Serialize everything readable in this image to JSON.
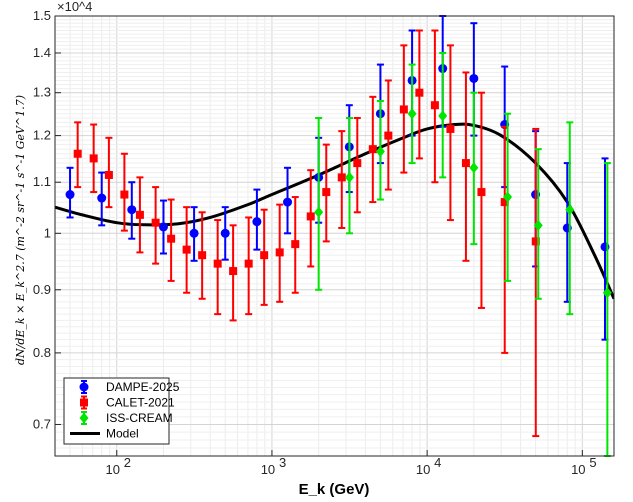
{
  "chart_data": {
    "type": "scatter",
    "xscale": "log",
    "yscale": "log",
    "xlim": [
      40,
      160000
    ],
    "ylim": [
      0.66,
      1.5
    ],
    "ylim_unit_multiplier": "×10^4",
    "xlabel": "E_k (GeV)",
    "ylabel": "dN/dE_k × E_k^2.7 (m^-2 sr^-1 s^-1 GeV^1.7)",
    "y_exponent_label": "×10^4",
    "x_ticks": [
      {
        "value": 100,
        "base": "10",
        "exp": "2"
      },
      {
        "value": 1000,
        "base": "10",
        "exp": "3"
      },
      {
        "value": 10000,
        "base": "10",
        "exp": "4"
      },
      {
        "value": 100000,
        "base": "10",
        "exp": "5"
      }
    ],
    "y_ticks": [
      {
        "value": 0.7,
        "label": "0.7"
      },
      {
        "value": 0.8,
        "label": "0.8"
      },
      {
        "value": 0.9,
        "label": "0.9"
      },
      {
        "value": 1.0,
        "label": "1"
      },
      {
        "value": 1.1,
        "label": "1.1"
      },
      {
        "value": 1.2,
        "label": "1.2"
      },
      {
        "value": 1.3,
        "label": "1.3"
      },
      {
        "value": 1.4,
        "label": "1.4"
      },
      {
        "value": 1.5,
        "label": "1.5"
      }
    ],
    "grid": true,
    "legend_position": "bottom-left",
    "series": [
      {
        "name": "DAMPE-2025",
        "color": "#0000ff",
        "marker": "circle",
        "points": [
          {
            "x": 50,
            "y": 1.075,
            "lo": 1.03,
            "hi": 1.13
          },
          {
            "x": 80,
            "y": 1.068,
            "lo": 1.015,
            "hi": 1.12
          },
          {
            "x": 125,
            "y": 1.045,
            "lo": 0.99,
            "hi": 1.1
          },
          {
            "x": 200,
            "y": 1.012,
            "lo": 0.963,
            "hi": 1.063
          },
          {
            "x": 315,
            "y": 1.0,
            "lo": 0.95,
            "hi": 1.05
          },
          {
            "x": 500,
            "y": 1.0,
            "lo": 0.952,
            "hi": 1.05
          },
          {
            "x": 800,
            "y": 1.022,
            "lo": 0.97,
            "hi": 1.085
          },
          {
            "x": 1260,
            "y": 1.06,
            "lo": 1.0,
            "hi": 1.13
          },
          {
            "x": 2000,
            "y": 1.11,
            "lo": 1.02,
            "hi": 1.195
          },
          {
            "x": 3150,
            "y": 1.175,
            "lo": 1.08,
            "hi": 1.27
          },
          {
            "x": 5000,
            "y": 1.25,
            "lo": 1.14,
            "hi": 1.37
          },
          {
            "x": 8000,
            "y": 1.33,
            "lo": 1.2,
            "hi": 1.46
          },
          {
            "x": 12600,
            "y": 1.36,
            "lo": 1.22,
            "hi": 1.5
          },
          {
            "x": 20000,
            "y": 1.335,
            "lo": 1.2,
            "hi": 1.48
          },
          {
            "x": 31600,
            "y": 1.225,
            "lo": 1.09,
            "hi": 1.365
          },
          {
            "x": 50000,
            "y": 1.075,
            "lo": 0.94,
            "hi": 1.21
          },
          {
            "x": 80000,
            "y": 1.01,
            "lo": 0.88,
            "hi": 1.14
          },
          {
            "x": 140000,
            "y": 0.975,
            "lo": 0.82,
            "hi": 1.15
          }
        ]
      },
      {
        "name": "CALET-2021",
        "color": "#ff0000",
        "marker": "square",
        "points": [
          {
            "x": 56,
            "y": 1.16,
            "lo": 1.09,
            "hi": 1.23
          },
          {
            "x": 71,
            "y": 1.15,
            "lo": 1.08,
            "hi": 1.225
          },
          {
            "x": 89,
            "y": 1.115,
            "lo": 1.05,
            "hi": 1.195
          },
          {
            "x": 112,
            "y": 1.075,
            "lo": 1.005,
            "hi": 1.16
          },
          {
            "x": 141,
            "y": 1.035,
            "lo": 0.965,
            "hi": 1.11
          },
          {
            "x": 178,
            "y": 1.02,
            "lo": 0.945,
            "hi": 1.09
          },
          {
            "x": 224,
            "y": 0.99,
            "lo": 0.915,
            "hi": 1.065
          },
          {
            "x": 282,
            "y": 0.97,
            "lo": 0.895,
            "hi": 1.05
          },
          {
            "x": 355,
            "y": 0.96,
            "lo": 0.885,
            "hi": 1.04
          },
          {
            "x": 447,
            "y": 0.945,
            "lo": 0.86,
            "hi": 1.025
          },
          {
            "x": 562,
            "y": 0.932,
            "lo": 0.85,
            "hi": 1.015
          },
          {
            "x": 708,
            "y": 0.945,
            "lo": 0.86,
            "hi": 1.03
          },
          {
            "x": 891,
            "y": 0.96,
            "lo": 0.875,
            "hi": 1.045
          },
          {
            "x": 1122,
            "y": 0.965,
            "lo": 0.88,
            "hi": 1.055
          },
          {
            "x": 1413,
            "y": 0.98,
            "lo": 0.895,
            "hi": 1.07
          },
          {
            "x": 1778,
            "y": 1.032,
            "lo": 0.94,
            "hi": 1.125
          },
          {
            "x": 2239,
            "y": 1.08,
            "lo": 0.985,
            "hi": 1.18
          },
          {
            "x": 2818,
            "y": 1.11,
            "lo": 1.01,
            "hi": 1.21
          },
          {
            "x": 3548,
            "y": 1.14,
            "lo": 1.04,
            "hi": 1.24
          },
          {
            "x": 4467,
            "y": 1.17,
            "lo": 1.06,
            "hi": 1.29
          },
          {
            "x": 5623,
            "y": 1.2,
            "lo": 1.085,
            "hi": 1.33
          },
          {
            "x": 7079,
            "y": 1.26,
            "lo": 1.12,
            "hi": 1.42
          },
          {
            "x": 8913,
            "y": 1.3,
            "lo": 1.15,
            "hi": 1.46
          },
          {
            "x": 11220,
            "y": 1.27,
            "lo": 1.1,
            "hi": 1.46
          },
          {
            "x": 14125,
            "y": 1.215,
            "lo": 1.025,
            "hi": 1.42
          },
          {
            "x": 17783,
            "y": 1.14,
            "lo": 0.95,
            "hi": 1.35
          },
          {
            "x": 22387,
            "y": 1.08,
            "lo": 0.87,
            "hi": 1.3
          },
          {
            "x": 31623,
            "y": 1.06,
            "lo": 0.8,
            "hi": 1.22
          },
          {
            "x": 50119,
            "y": 0.985,
            "lo": 0.685,
            "hi": 1.215
          }
        ]
      },
      {
        "name": "ISS-CREAM",
        "color": "#00e600",
        "marker": "diamond",
        "points": [
          {
            "x": 2000,
            "y": 1.04,
            "lo": 0.9,
            "hi": 1.24
          },
          {
            "x": 3160,
            "y": 1.11,
            "lo": 1.0,
            "hi": 1.24
          },
          {
            "x": 5000,
            "y": 1.165,
            "lo": 1.065,
            "hi": 1.28
          },
          {
            "x": 8000,
            "y": 1.25,
            "lo": 1.14,
            "hi": 1.37
          },
          {
            "x": 12600,
            "y": 1.245,
            "lo": 1.11,
            "hi": 1.4
          },
          {
            "x": 20000,
            "y": 1.13,
            "lo": 0.98,
            "hi": 1.3
          },
          {
            "x": 33000,
            "y": 1.07,
            "lo": 0.915,
            "hi": 1.25
          },
          {
            "x": 52000,
            "y": 1.015,
            "lo": 0.885,
            "hi": 1.17
          },
          {
            "x": 83000,
            "y": 1.045,
            "lo": 0.86,
            "hi": 1.23
          },
          {
            "x": 145000,
            "y": 0.895,
            "lo": 0.65,
            "hi": 1.14
          }
        ]
      },
      {
        "name": "Model",
        "color": "#000000",
        "marker": "line",
        "points": [
          {
            "x": 40,
            "y": 1.05
          },
          {
            "x": 60,
            "y": 1.035
          },
          {
            "x": 100,
            "y": 1.02
          },
          {
            "x": 150,
            "y": 1.016
          },
          {
            "x": 250,
            "y": 1.018
          },
          {
            "x": 400,
            "y": 1.03
          },
          {
            "x": 700,
            "y": 1.055
          },
          {
            "x": 1000,
            "y": 1.075
          },
          {
            "x": 2000,
            "y": 1.115
          },
          {
            "x": 4000,
            "y": 1.16
          },
          {
            "x": 7000,
            "y": 1.195
          },
          {
            "x": 10000,
            "y": 1.215
          },
          {
            "x": 15000,
            "y": 1.225
          },
          {
            "x": 20000,
            "y": 1.223
          },
          {
            "x": 30000,
            "y": 1.2
          },
          {
            "x": 50000,
            "y": 1.14
          },
          {
            "x": 80000,
            "y": 1.06
          },
          {
            "x": 120000,
            "y": 0.96
          },
          {
            "x": 160000,
            "y": 0.885
          }
        ]
      }
    ]
  }
}
